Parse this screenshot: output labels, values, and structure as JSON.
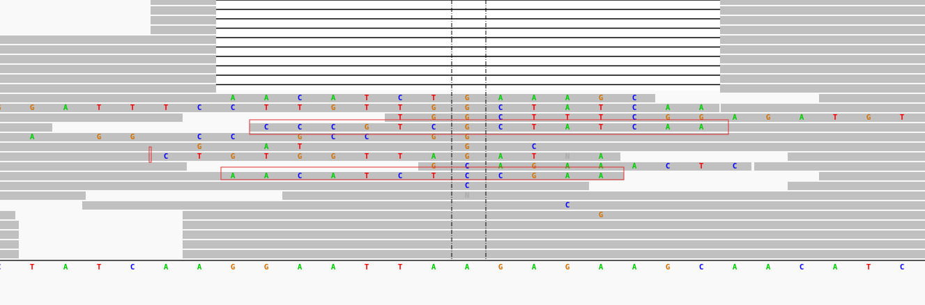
{
  "reference": [
    "C",
    "T",
    "A",
    "T",
    "C",
    "A",
    "A",
    "G",
    "G",
    "A",
    "A",
    "T",
    "T",
    "A",
    "A",
    "G",
    "A",
    "G",
    "A",
    "A",
    "G",
    "C",
    "A",
    "A",
    "C",
    "A",
    "T",
    "C"
  ],
  "reads": [
    [
      null,
      null,
      null,
      null,
      null,
      null,
      null,
      "A",
      "A",
      "C",
      "A",
      "T",
      "C",
      "T",
      "G",
      "A",
      "A",
      "A",
      "G",
      "C",
      null,
      null,
      null,
      null,
      null,
      null,
      null,
      null
    ],
    [
      "G",
      "G",
      "A",
      "T",
      "T",
      "T",
      "C",
      "C",
      "T",
      "T",
      "G",
      "T",
      "T",
      "G",
      "G",
      "C",
      "T",
      "A",
      "T",
      "C",
      "A",
      "A",
      null,
      null,
      null,
      null,
      null,
      null
    ],
    [
      null,
      null,
      null,
      null,
      null,
      null,
      null,
      null,
      null,
      null,
      null,
      null,
      "T",
      "G",
      "G",
      "C",
      "T",
      "T",
      "T",
      "C",
      "G",
      "G",
      "A",
      "G",
      "A",
      "T",
      "G",
      "T"
    ],
    [
      null,
      null,
      null,
      null,
      null,
      null,
      null,
      null,
      "C",
      "C",
      "C",
      "G",
      "T",
      "C",
      "G",
      "C",
      "T",
      "A",
      "T",
      "C",
      "A",
      "A",
      null,
      null,
      null,
      null,
      null,
      null
    ],
    [
      null,
      "A",
      null,
      "G",
      "G",
      null,
      "C",
      "C",
      null,
      "G",
      "C",
      "C",
      null,
      "G",
      "G",
      null,
      null,
      null,
      null,
      null,
      null,
      null,
      null,
      null,
      null,
      null,
      null,
      null
    ],
    [
      null,
      null,
      null,
      null,
      null,
      null,
      "G",
      null,
      "A",
      "T",
      null,
      null,
      null,
      null,
      "G",
      null,
      "C",
      null,
      null,
      null,
      null,
      null,
      null,
      null,
      null,
      null,
      null,
      null
    ],
    [
      null,
      null,
      null,
      null,
      null,
      "C",
      "T",
      "G",
      "T",
      "G",
      "G",
      "T",
      "T",
      "A",
      "G",
      "A",
      "T",
      "N",
      "A",
      null,
      null,
      null,
      null,
      null,
      null,
      null,
      null,
      null
    ],
    [
      null,
      null,
      null,
      null,
      null,
      null,
      null,
      null,
      null,
      null,
      null,
      null,
      null,
      "G",
      "C",
      "A",
      "G",
      "A",
      "A",
      "A",
      "C",
      "T",
      "C",
      null,
      null,
      null,
      null,
      null
    ],
    [
      null,
      null,
      null,
      null,
      null,
      null,
      null,
      "A",
      "A",
      "C",
      "A",
      "T",
      "C",
      "T",
      "C",
      "C",
      "G",
      "A",
      "A",
      null,
      null,
      null,
      null,
      null,
      null,
      null,
      null,
      null
    ],
    [
      null,
      null,
      null,
      null,
      null,
      null,
      null,
      null,
      null,
      null,
      null,
      null,
      null,
      null,
      "C",
      null,
      null,
      null,
      null,
      null,
      null,
      null,
      null,
      null,
      null,
      null,
      null,
      null
    ],
    [
      null,
      null,
      null,
      null,
      null,
      null,
      null,
      null,
      null,
      null,
      null,
      null,
      null,
      null,
      "N",
      null,
      null,
      null,
      null,
      null,
      null,
      null,
      null,
      null,
      null,
      null,
      null,
      null
    ],
    [
      null,
      null,
      null,
      null,
      null,
      null,
      null,
      null,
      null,
      null,
      null,
      null,
      null,
      null,
      null,
      null,
      null,
      "C",
      null,
      null,
      null,
      null,
      null,
      null,
      null,
      null,
      null,
      null
    ],
    [
      null,
      null,
      null,
      null,
      null,
      null,
      null,
      null,
      null,
      null,
      null,
      null,
      null,
      null,
      null,
      null,
      null,
      null,
      "G",
      null,
      null,
      null,
      null,
      null,
      null,
      null,
      null,
      null
    ]
  ]
}
